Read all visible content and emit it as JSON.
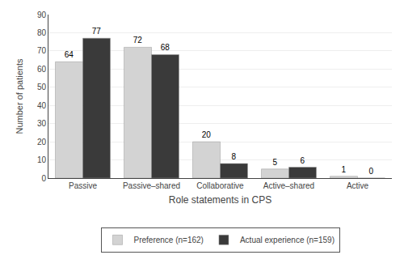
{
  "chart_data": {
    "type": "bar",
    "categories": [
      "Passive",
      "Passive–shared",
      "Collaborative",
      "Active–shared",
      "Active"
    ],
    "series": [
      {
        "name": "Preference (n=162)",
        "color": "#d3d3d3",
        "values": [
          64,
          72,
          20,
          5,
          1
        ]
      },
      {
        "name": "Actual experience (n=159)",
        "color": "#3a3a3a",
        "values": [
          77,
          68,
          8,
          6,
          0
        ]
      }
    ],
    "xlabel": "Role statements in CPS",
    "ylabel": "Number of patients",
    "ylim": [
      0,
      90
    ],
    "yticks": [
      0,
      10,
      20,
      30,
      40,
      50,
      60,
      70,
      80,
      90
    ],
    "grid": true,
    "legend": "bottom",
    "data_labels": true
  }
}
